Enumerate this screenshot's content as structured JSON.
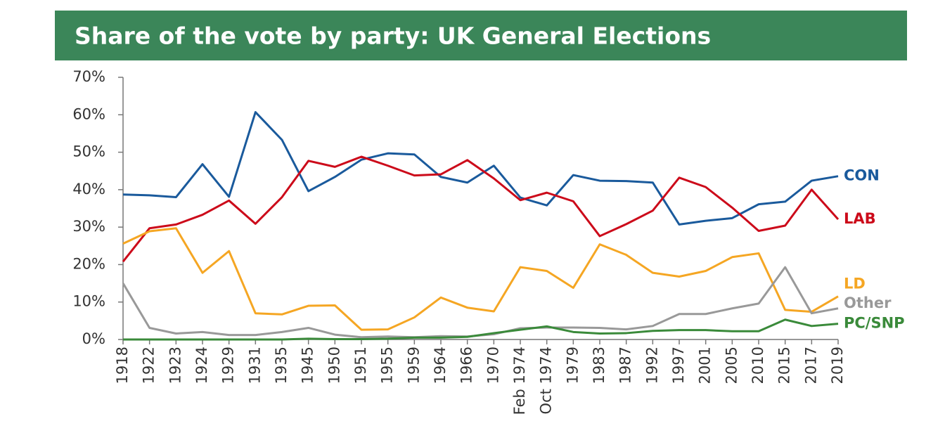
{
  "chart_data": {
    "type": "line",
    "title": "Share of the vote by party: UK General Elections",
    "categories": [
      "1918",
      "1922",
      "1923",
      "1924",
      "1929",
      "1931",
      "1935",
      "1945",
      "1950",
      "1951",
      "1955",
      "1959",
      "1964",
      "1966",
      "1970",
      "Feb 1974",
      "Oct 1974",
      "1979",
      "1983",
      "1987",
      "1992",
      "1997",
      "2001",
      "2005",
      "2010",
      "2015",
      "2017",
      "2019"
    ],
    "series": [
      {
        "name": "CON",
        "color": "#1a5a9c",
        "values": [
          38.7,
          38.5,
          38.0,
          46.8,
          38.1,
          60.7,
          53.3,
          39.6,
          43.4,
          48.0,
          49.7,
          49.4,
          43.4,
          41.9,
          46.4,
          37.9,
          35.8,
          43.9,
          42.4,
          42.3,
          41.9,
          30.7,
          31.7,
          32.4,
          36.1,
          36.8,
          42.4,
          43.6
        ]
      },
      {
        "name": "LAB",
        "color": "#cc0a1a",
        "values": [
          20.8,
          29.7,
          30.7,
          33.3,
          37.1,
          30.9,
          38.0,
          47.7,
          46.1,
          48.8,
          46.4,
          43.8,
          44.1,
          47.9,
          43.0,
          37.2,
          39.2,
          36.9,
          27.6,
          30.8,
          34.4,
          43.2,
          40.7,
          35.2,
          29.0,
          30.4,
          40.0,
          32.1
        ]
      },
      {
        "name": "LD",
        "color": "#f5a623",
        "values": [
          25.6,
          28.9,
          29.7,
          17.8,
          23.6,
          7.0,
          6.7,
          9.0,
          9.1,
          2.6,
          2.7,
          5.9,
          11.2,
          8.5,
          7.5,
          19.3,
          18.3,
          13.8,
          25.4,
          22.6,
          17.8,
          16.8,
          18.3,
          22.0,
          23.0,
          7.9,
          7.4,
          11.5
        ]
      },
      {
        "name": "Other",
        "color": "#999999",
        "values": [
          15.0,
          3.1,
          1.6,
          2.0,
          1.2,
          1.2,
          2.0,
          3.1,
          1.3,
          0.6,
          0.8,
          0.6,
          0.9,
          0.8,
          1.4,
          3.0,
          3.2,
          3.2,
          3.1,
          2.7,
          3.6,
          6.8,
          6.8,
          8.3,
          9.6,
          19.3,
          7.0,
          8.3
        ]
      },
      {
        "name": "PC/SNP",
        "color": "#3a8a3a",
        "values": [
          0,
          0,
          0,
          0,
          0,
          0,
          0,
          0.2,
          0.1,
          0.1,
          0.2,
          0.5,
          0.5,
          0.7,
          1.7,
          2.6,
          3.5,
          2.0,
          1.6,
          1.7,
          2.3,
          2.5,
          2.5,
          2.2,
          2.2,
          5.3,
          3.6,
          4.2
        ]
      }
    ],
    "ylim": [
      0,
      70
    ],
    "yticks": [
      {
        "value": 0,
        "label": "0%"
      },
      {
        "value": 10,
        "label": "10%"
      },
      {
        "value": 20,
        "label": "20%"
      },
      {
        "value": 30,
        "label": "30%"
      },
      {
        "value": 40,
        "label": "40%"
      },
      {
        "value": 50,
        "label": "50%"
      },
      {
        "value": 60,
        "label": "60%"
      },
      {
        "value": 70,
        "label": "70%"
      }
    ]
  }
}
